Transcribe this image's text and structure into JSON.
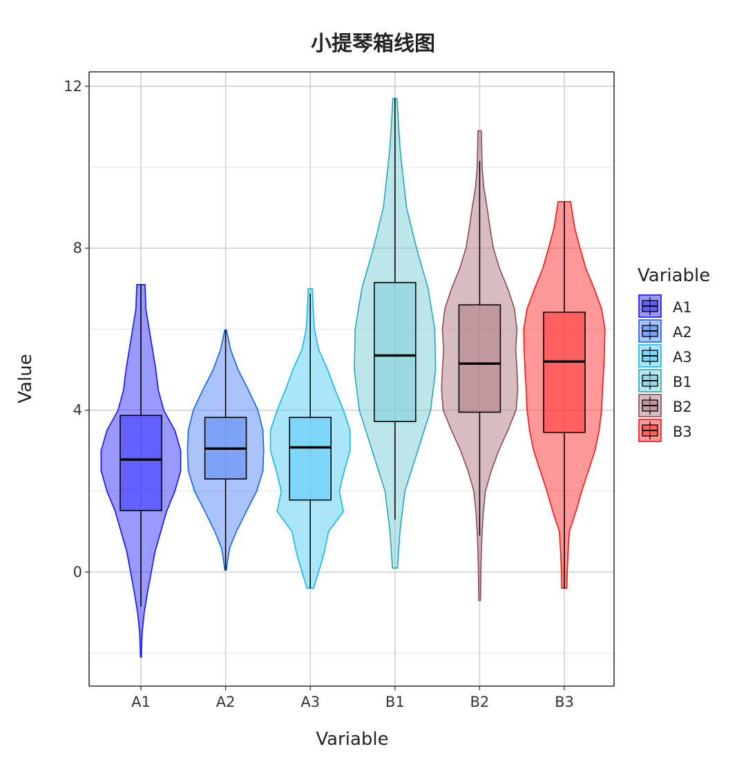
{
  "chart_data": {
    "type": "violin",
    "title": "小提琴箱线图",
    "xlabel": "Variable",
    "ylabel": "Value",
    "ylim": [
      -2.8,
      12.4
    ],
    "yticks": [
      0,
      4,
      8,
      12
    ],
    "grid": true,
    "legend": {
      "title": "Variable",
      "position": "right"
    },
    "categories": [
      "A1",
      "A2",
      "A3",
      "B1",
      "B2",
      "B3"
    ],
    "series": [
      {
        "name": "A1",
        "color": "#1010ff",
        "fill": "#3333ff",
        "min": -2.1,
        "max": 7.1,
        "whisker_low": -0.85,
        "whisker_high": 7.1,
        "q1": 1.52,
        "median": 2.78,
        "q3": 3.87,
        "density": [
          [
            -2.1,
            0.01
          ],
          [
            -1.5,
            0.03
          ],
          [
            -1.0,
            0.08
          ],
          [
            -0.5,
            0.16
          ],
          [
            0.0,
            0.25
          ],
          [
            0.5,
            0.34
          ],
          [
            1.0,
            0.48
          ],
          [
            1.5,
            0.62
          ],
          [
            2.0,
            0.82
          ],
          [
            2.5,
            0.96
          ],
          [
            3.0,
            0.96
          ],
          [
            3.5,
            0.82
          ],
          [
            4.0,
            0.55
          ],
          [
            4.5,
            0.42
          ],
          [
            5.0,
            0.36
          ],
          [
            5.5,
            0.28
          ],
          [
            6.0,
            0.2
          ],
          [
            6.5,
            0.12
          ],
          [
            7.1,
            0.1
          ]
        ]
      },
      {
        "name": "A2",
        "color": "#1060ee",
        "fill": "#5588f5",
        "min": 0.05,
        "max": 5.98,
        "whisker_low": 0.05,
        "whisker_high": 5.98,
        "q1": 2.3,
        "median": 3.05,
        "q3": 3.82,
        "density": [
          [
            0.05,
            0.02
          ],
          [
            0.3,
            0.05
          ],
          [
            0.6,
            0.1
          ],
          [
            1.0,
            0.26
          ],
          [
            1.5,
            0.5
          ],
          [
            2.0,
            0.75
          ],
          [
            2.5,
            0.9
          ],
          [
            3.0,
            0.92
          ],
          [
            3.5,
            0.9
          ],
          [
            4.0,
            0.78
          ],
          [
            4.5,
            0.55
          ],
          [
            5.0,
            0.3
          ],
          [
            5.5,
            0.12
          ],
          [
            5.98,
            0.02
          ]
        ]
      },
      {
        "name": "A3",
        "color": "#10b8ee",
        "fill": "#55ccf5",
        "min": -0.4,
        "max": 7.0,
        "whisker_low": -0.4,
        "whisker_high": 6.88,
        "q1": 1.78,
        "median": 3.08,
        "q3": 3.82,
        "density": [
          [
            -0.4,
            0.08
          ],
          [
            0.0,
            0.2
          ],
          [
            0.5,
            0.34
          ],
          [
            1.0,
            0.44
          ],
          [
            1.5,
            0.8
          ],
          [
            2.0,
            0.7
          ],
          [
            2.5,
            0.82
          ],
          [
            3.0,
            0.96
          ],
          [
            3.5,
            0.96
          ],
          [
            4.0,
            0.8
          ],
          [
            4.5,
            0.6
          ],
          [
            5.0,
            0.42
          ],
          [
            5.5,
            0.2
          ],
          [
            6.0,
            0.1
          ],
          [
            6.5,
            0.07
          ],
          [
            7.0,
            0.05
          ]
        ]
      },
      {
        "name": "B1",
        "color": "#20a8b8",
        "fill": "#7ccdd8",
        "min": 0.1,
        "max": 11.7,
        "whisker_low": 1.3,
        "whisker_high": 11.7,
        "q1": 3.72,
        "median": 5.35,
        "q3": 7.15,
        "density": [
          [
            0.1,
            0.06
          ],
          [
            1.0,
            0.12
          ],
          [
            2.0,
            0.24
          ],
          [
            3.0,
            0.55
          ],
          [
            4.0,
            0.86
          ],
          [
            5.0,
            0.98
          ],
          [
            6.0,
            0.96
          ],
          [
            7.0,
            0.8
          ],
          [
            8.0,
            0.52
          ],
          [
            9.0,
            0.28
          ],
          [
            10.0,
            0.17
          ],
          [
            10.5,
            0.12
          ],
          [
            11.0,
            0.09
          ],
          [
            11.7,
            0.05
          ]
        ]
      },
      {
        "name": "B2",
        "color": "#8b4a52",
        "fill": "#b07a84",
        "min": -0.7,
        "max": 10.9,
        "whisker_low": 0.9,
        "whisker_high": 10.15,
        "q1": 3.95,
        "median": 5.15,
        "q3": 6.6,
        "density": [
          [
            -0.7,
            0.02
          ],
          [
            0.0,
            0.03
          ],
          [
            0.5,
            0.04
          ],
          [
            1.0,
            0.06
          ],
          [
            1.5,
            0.09
          ],
          [
            2.0,
            0.14
          ],
          [
            2.5,
            0.28
          ],
          [
            3.0,
            0.46
          ],
          [
            3.5,
            0.68
          ],
          [
            4.0,
            0.88
          ],
          [
            4.5,
            0.92
          ],
          [
            5.0,
            0.9
          ],
          [
            5.5,
            0.87
          ],
          [
            6.0,
            0.9
          ],
          [
            6.5,
            0.84
          ],
          [
            7.0,
            0.68
          ],
          [
            7.5,
            0.48
          ],
          [
            8.0,
            0.33
          ],
          [
            8.5,
            0.25
          ],
          [
            9.0,
            0.18
          ],
          [
            9.5,
            0.1
          ],
          [
            10.0,
            0.06
          ],
          [
            10.9,
            0.04
          ]
        ]
      },
      {
        "name": "B3",
        "color": "#ff1111",
        "fill": "#ff3333",
        "min": -0.4,
        "max": 9.15,
        "whisker_low": -0.4,
        "whisker_high": 9.15,
        "q1": 3.45,
        "median": 5.2,
        "q3": 6.42,
        "density": [
          [
            -0.4,
            0.06
          ],
          [
            0.0,
            0.07
          ],
          [
            0.5,
            0.09
          ],
          [
            1.0,
            0.12
          ],
          [
            1.5,
            0.28
          ],
          [
            2.0,
            0.42
          ],
          [
            2.5,
            0.58
          ],
          [
            3.0,
            0.74
          ],
          [
            3.5,
            0.84
          ],
          [
            4.0,
            0.9
          ],
          [
            4.5,
            0.92
          ],
          [
            5.0,
            0.95
          ],
          [
            5.5,
            0.97
          ],
          [
            6.0,
            0.98
          ],
          [
            6.5,
            0.9
          ],
          [
            7.0,
            0.72
          ],
          [
            7.5,
            0.52
          ],
          [
            8.0,
            0.38
          ],
          [
            8.5,
            0.25
          ],
          [
            9.15,
            0.15
          ]
        ]
      }
    ]
  }
}
